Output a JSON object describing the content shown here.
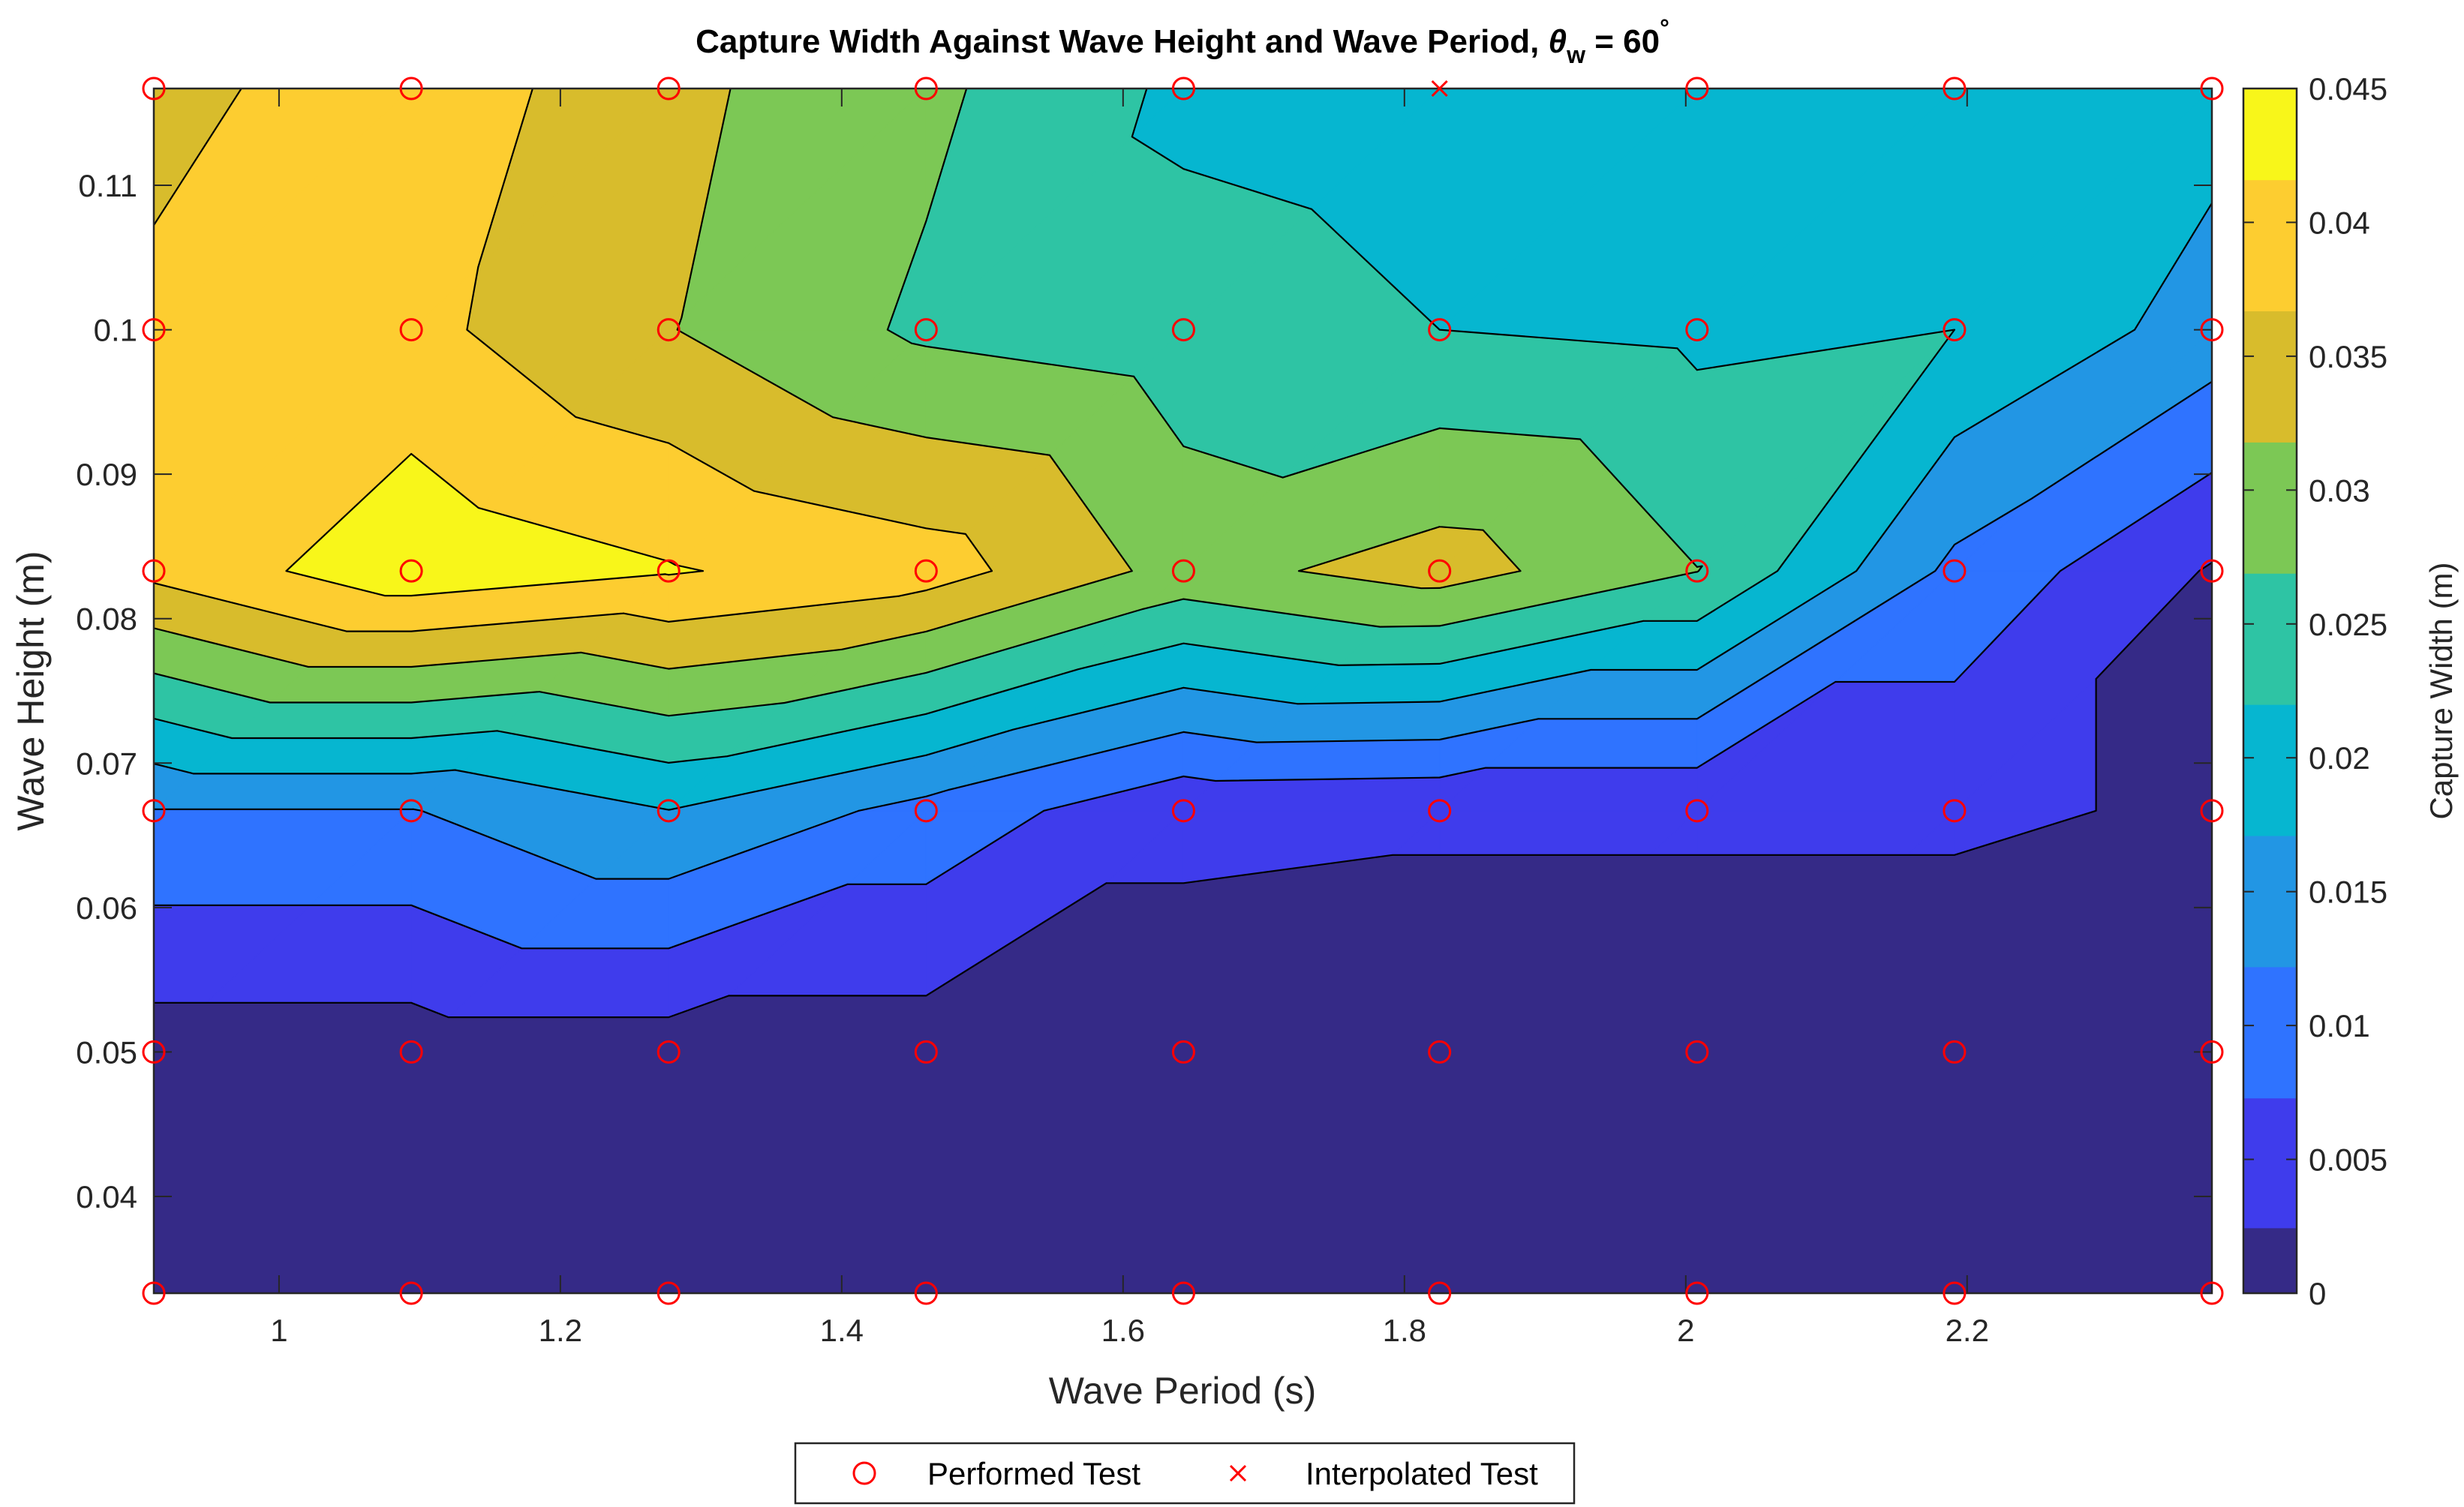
{
  "chart_data": {
    "type": "contour",
    "title": "Capture Width Against Wave Height and Wave Period, ",
    "title_symbol": "θ",
    "title_symbol_sub": "w",
    "title_suffix": " = 60",
    "title_degree": "°",
    "xlabel": "Wave Period (s)",
    "ylabel": "Wave Height (m)",
    "colorbar_label": "Capture Width (m)",
    "xlim": [
      0.911,
      2.374
    ],
    "ylim": [
      0.0333,
      0.1167
    ],
    "clim": [
      0,
      0.045
    ],
    "x_ticks": [
      "1",
      "1.2",
      "1.4",
      "1.6",
      "1.8",
      "2",
      "2.2"
    ],
    "x_tick_values": [
      1.0,
      1.2,
      1.4,
      1.6,
      1.8,
      2.0,
      2.2
    ],
    "y_ticks": [
      "0.04",
      "0.05",
      "0.06",
      "0.07",
      "0.08",
      "0.09",
      "0.1",
      "0.11"
    ],
    "y_tick_values": [
      0.04,
      0.05,
      0.06,
      0.07,
      0.08,
      0.09,
      0.1,
      0.11
    ],
    "colorbar_ticks": [
      "0",
      "0.005",
      "0.01",
      "0.015",
      "0.02",
      "0.025",
      "0.03",
      "0.035",
      "0.04",
      "0.045"
    ],
    "colorbar_tick_values": [
      0,
      0.005,
      0.01,
      0.015,
      0.02,
      0.025,
      0.03,
      0.035,
      0.04,
      0.045
    ],
    "wave_periods": [
      0.911,
      1.094,
      1.277,
      1.46,
      1.643,
      1.825,
      2.008,
      2.191,
      2.374
    ],
    "wave_heights": [
      0.0333,
      0.05,
      0.0667,
      0.0833,
      0.1,
      0.1167
    ],
    "capture_width": [
      [
        0.0,
        0.0,
        0.0,
        0.0,
        0.0,
        0.0,
        0.0,
        0.0,
        0.0
      ],
      [
        0.0,
        0.0,
        0.0,
        0.0,
        0.0,
        0.0,
        0.0,
        0.0,
        0.0
      ],
      [
        0.012,
        0.012,
        0.017,
        0.0105,
        0.0035,
        0.003,
        0.003,
        0.003,
        0.002
      ],
      [
        0.038,
        0.045,
        0.042,
        0.039,
        0.03,
        0.034,
        0.027,
        0.011,
        0.002
      ],
      [
        0.038,
        0.038,
        0.032,
        0.026,
        0.024,
        0.022,
        0.021,
        0.022,
        0.015
      ],
      [
        0.035,
        0.04,
        0.033,
        0.028,
        0.021,
        0.02,
        0.019,
        0.019,
        0.019
      ]
    ],
    "contour_levels": [
      0.00245,
      0.0073,
      0.0122,
      0.0171,
      0.022,
      0.0269,
      0.0318,
      0.0367,
      0.0416
    ],
    "colormap": [
      "#352a87",
      "#3f3cec",
      "#2f73ff",
      "#2296e4",
      "#06b6d0",
      "#2ec4a4",
      "#7cc855",
      "#d8bc2c",
      "#fdcd30",
      "#f8f61a"
    ],
    "series": [
      {
        "name": "Performed Test",
        "marker": "circle",
        "color": "#ff0000"
      },
      {
        "name": "Interpolated Test",
        "marker": "x",
        "color": "#ff0000"
      }
    ],
    "performed_tests": {
      "x": [
        0.911,
        1.094,
        1.277,
        1.46,
        1.643,
        1.825,
        2.008,
        2.191,
        2.374,
        0.911,
        1.094,
        1.277,
        1.46,
        1.643,
        1.825,
        2.008,
        2.191,
        2.374,
        0.911,
        1.094,
        1.277,
        1.46,
        1.643,
        1.825,
        2.008,
        2.191,
        2.374,
        0.911,
        1.094,
        1.277,
        1.46,
        1.643,
        1.825,
        2.008,
        2.191,
        2.374,
        0.911,
        1.094,
        1.277,
        1.46,
        1.643,
        1.825,
        2.008,
        2.191,
        2.374,
        0.911,
        1.094,
        1.277,
        1.46,
        1.643,
        2.008,
        2.191,
        2.374
      ],
      "y": [
        0.0333,
        0.0333,
        0.0333,
        0.0333,
        0.0333,
        0.0333,
        0.0333,
        0.0333,
        0.0333,
        0.05,
        0.05,
        0.05,
        0.05,
        0.05,
        0.05,
        0.05,
        0.05,
        0.05,
        0.0667,
        0.0667,
        0.0667,
        0.0667,
        0.0667,
        0.0667,
        0.0667,
        0.0667,
        0.0667,
        0.0833,
        0.0833,
        0.0833,
        0.0833,
        0.0833,
        0.0833,
        0.0833,
        0.0833,
        0.0833,
        0.1,
        0.1,
        0.1,
        0.1,
        0.1,
        0.1,
        0.1,
        0.1,
        0.1,
        0.1167,
        0.1167,
        0.1167,
        0.1167,
        0.1167,
        0.1167,
        0.1167,
        0.1167
      ]
    },
    "interpolated_tests": {
      "x": [
        1.825
      ],
      "y": [
        0.1167
      ]
    },
    "legend_position": "bottom-center",
    "grid": false
  }
}
